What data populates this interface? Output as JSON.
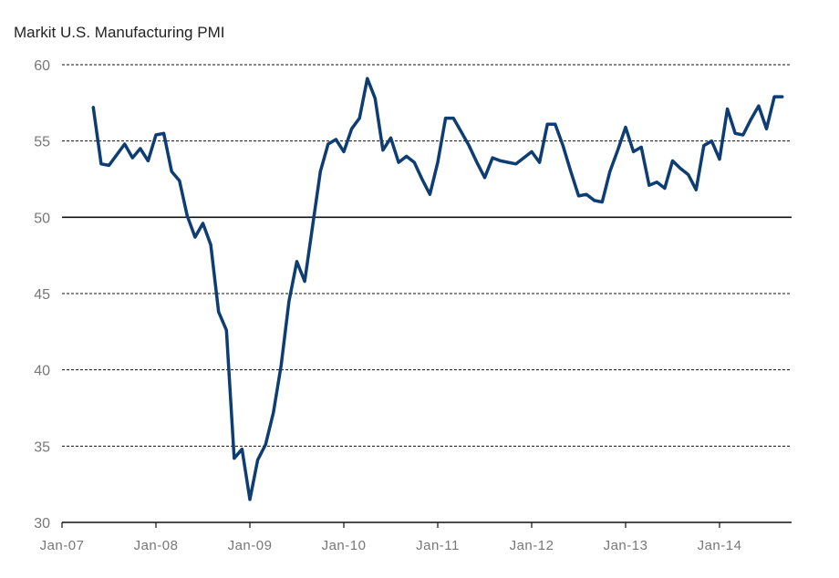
{
  "chart_data": {
    "type": "line",
    "title": "Markit U.S. Manufacturing  PMI",
    "xlabel": "",
    "ylabel": "",
    "ylim": [
      30,
      60
    ],
    "yticks": [
      30,
      35,
      40,
      45,
      50,
      55,
      60
    ],
    "xlim": [
      "2007-01",
      "2014-10"
    ],
    "xtick_labels": [
      "Jan-07",
      "Jan-08",
      "Jan-09",
      "Jan-10",
      "Jan-11",
      "Jan-12",
      "Jan-13",
      "Jan-14"
    ],
    "grid": "horizontal dashed",
    "reference_line": 50,
    "line_color": "#0d3d73",
    "series": [
      {
        "start_month": "2007-05",
        "frequency": "monthly",
        "values": [
          57.2,
          53.5,
          53.4,
          54.1,
          54.8,
          53.9,
          54.5,
          53.7,
          55.4,
          55.5,
          53.0,
          52.4,
          50.1,
          48.7,
          49.6,
          48.2,
          43.8,
          42.6,
          34.2,
          34.8,
          31.5,
          34.1,
          35.1,
          37.2,
          40.3,
          44.5,
          47.1,
          45.8,
          49.4,
          53.0,
          54.8,
          55.1,
          54.3,
          55.8,
          56.5,
          59.1,
          57.8,
          54.4,
          55.2,
          53.6,
          54.0,
          53.6,
          52.5,
          51.5,
          53.6,
          56.5,
          56.5,
          55.6,
          54.7,
          53.6,
          52.6,
          53.9,
          53.7,
          53.6,
          53.5,
          53.9,
          54.3,
          53.6,
          56.1,
          56.1,
          54.7,
          53.0,
          51.4,
          51.5,
          51.1,
          51.0,
          53.0,
          54.4,
          55.9,
          54.3,
          54.6,
          52.1,
          52.3,
          51.9,
          53.7,
          53.2,
          52.8,
          51.8,
          54.7,
          55.0,
          53.8,
          57.1,
          55.5,
          55.4,
          56.4,
          57.3,
          55.8,
          57.9,
          57.9
        ]
      }
    ]
  }
}
